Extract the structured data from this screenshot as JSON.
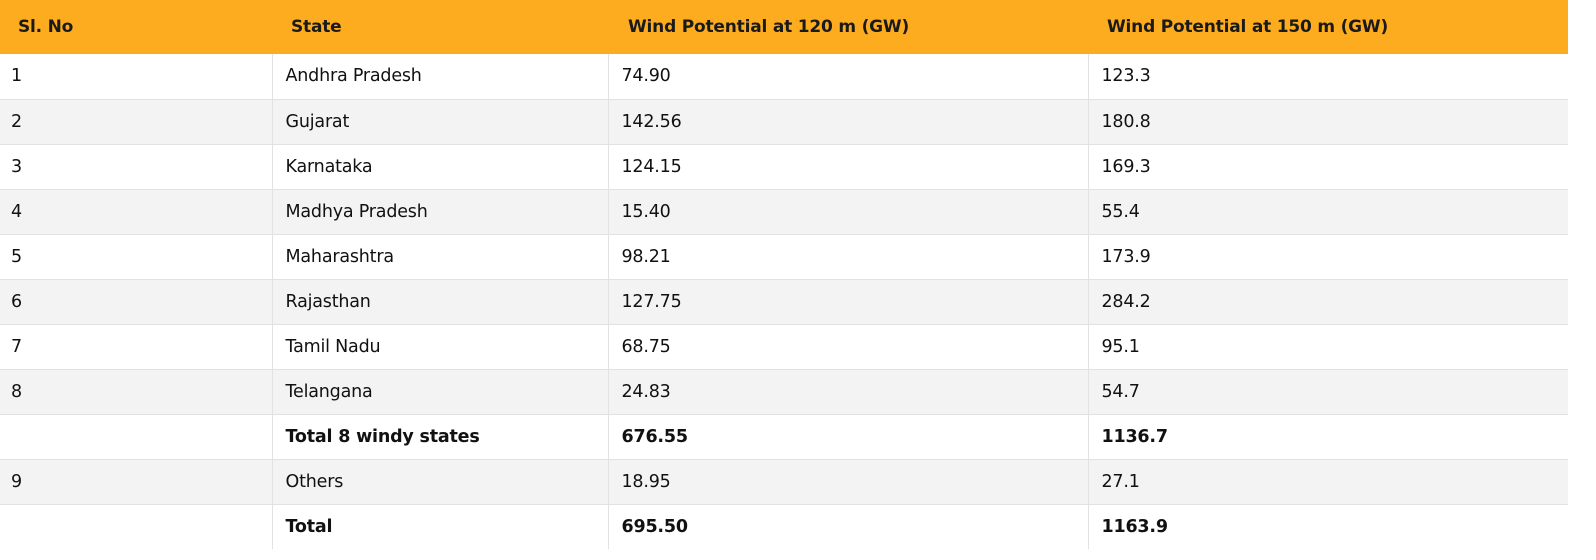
{
  "table": {
    "headers": [
      "Sl. No",
      "State",
      "Wind Potential at 120 m (GW)",
      "Wind Potential at 150 m (GW)"
    ],
    "rows": [
      {
        "no": "1",
        "state": "Andhra Pradesh",
        "w120": "74.90",
        "w150": "123.3"
      },
      {
        "no": "2",
        "state": "Gujarat",
        "w120": "142.56",
        "w150": "180.8"
      },
      {
        "no": "3",
        "state": "Karnataka",
        "w120": "124.15",
        "w150": "169.3"
      },
      {
        "no": "4",
        "state": "Madhya Pradesh",
        "w120": "15.40",
        "w150": "55.4"
      },
      {
        "no": "5",
        "state": "Maharashtra",
        "w120": "98.21",
        "w150": "173.9"
      },
      {
        "no": "6",
        "state": "Rajasthan",
        "w120": "127.75",
        "w150": "284.2"
      },
      {
        "no": "7",
        "state": "Tamil Nadu",
        "w120": "68.75",
        "w150": "95.1"
      },
      {
        "no": "8",
        "state": "Telangana",
        "w120": "24.83",
        "w150": "54.7"
      },
      {
        "no": "",
        "state": "Total 8 windy states",
        "w120": "676.55",
        "w150": "1136.7"
      },
      {
        "no": "9",
        "state": "Others",
        "w120": "18.95",
        "w150": "27.1"
      },
      {
        "no": "",
        "state": "Total",
        "w120": "695.50",
        "w150": "1163.9"
      }
    ]
  }
}
